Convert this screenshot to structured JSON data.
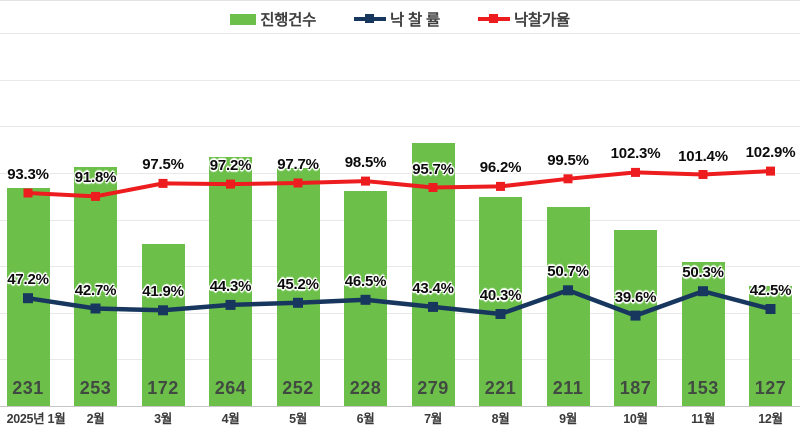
{
  "colors": {
    "bar": "#6cc04a",
    "bid_rate_line": "#17375e",
    "bid_price_line": "#ec1c1f",
    "grid": "#e8e8e8",
    "axis": "#c6c6c6",
    "bar_value_text": "#414a41",
    "pct_label_text": "#0c0c0c",
    "x_label_text": "#3a3a3a",
    "legend_text": "#3f3f3f"
  },
  "chart_data": {
    "type": "bar+line combo",
    "categories": [
      "2025년 1월",
      "2월",
      "3월",
      "4월",
      "5월",
      "6월",
      "7월",
      "8월",
      "9월",
      "10월",
      "11월",
      "12월"
    ],
    "series": [
      {
        "name": "진행건수",
        "type": "bar",
        "axis": "count",
        "values": [
          231,
          253,
          172,
          264,
          252,
          228,
          279,
          221,
          211,
          187,
          153,
          127
        ]
      },
      {
        "name": "낙 찰 률",
        "type": "line",
        "axis": "percent",
        "unit": "%",
        "values": [
          47.2,
          42.7,
          41.9,
          44.3,
          45.2,
          46.5,
          43.4,
          40.3,
          50.7,
          39.6,
          50.3,
          42.5
        ]
      },
      {
        "name": "낙찰가율",
        "type": "line",
        "axis": "percent",
        "unit": "%",
        "values": [
          93.3,
          91.8,
          97.5,
          97.2,
          97.7,
          98.5,
          95.7,
          96.2,
          99.5,
          102.3,
          101.4,
          102.9
        ]
      }
    ],
    "title": "",
    "xlabel": "",
    "ylabel": "",
    "legend_position": "top",
    "grid": true,
    "count_axis": {
      "min": 0,
      "max": 400,
      "gridline_step": 50,
      "visible": false
    },
    "percent_axis": {
      "min": 0,
      "max": 163,
      "visible": false
    }
  }
}
